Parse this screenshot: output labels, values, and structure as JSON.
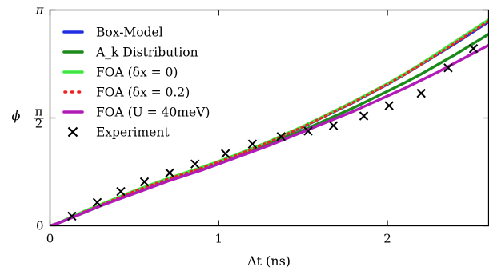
{
  "chart_data": {
    "type": "line",
    "xlabel": "Δt (ns)",
    "ylabel": "ϕ",
    "xlim": [
      0,
      2.6
    ],
    "ylim": [
      0,
      3.14159
    ],
    "x_ticks": [
      {
        "value": 0,
        "label": "0"
      },
      {
        "value": 1,
        "label": "1"
      },
      {
        "value": 2,
        "label": "2"
      }
    ],
    "y_ticks": [
      {
        "value": 0,
        "label": "0"
      },
      {
        "value": 1.5708,
        "label": "π/2"
      },
      {
        "value": 3.14159,
        "label": "π"
      }
    ],
    "grid": false,
    "legend_position": "top-left",
    "series": [
      {
        "name": "Box-Model",
        "color": "#1f2fe0",
        "style": "solid",
        "x": [
          0,
          0.05,
          0.1,
          0.2,
          0.3,
          0.4,
          0.5,
          0.6,
          0.7,
          0.8,
          0.9,
          1.0,
          1.1,
          1.2,
          1.3,
          1.4,
          1.5,
          1.6,
          1.7,
          1.8,
          1.9,
          2.0,
          2.1,
          2.2,
          2.3,
          2.4,
          2.5,
          2.6
        ],
        "y": [
          0,
          0.04,
          0.09,
          0.2,
          0.3,
          0.4,
          0.5,
          0.59,
          0.68,
          0.76,
          0.84,
          0.93,
          1.02,
          1.12,
          1.22,
          1.33,
          1.44,
          1.56,
          1.68,
          1.8,
          1.93,
          2.06,
          2.2,
          2.35,
          2.5,
          2.65,
          2.81,
          2.97
        ]
      },
      {
        "name": "A_k Distribution",
        "color": "#1a8a1a",
        "style": "solid",
        "x": [
          0,
          0.05,
          0.1,
          0.2,
          0.3,
          0.4,
          0.5,
          0.6,
          0.7,
          0.8,
          0.9,
          1.0,
          1.1,
          1.2,
          1.3,
          1.4,
          1.5,
          1.6,
          1.7,
          1.8,
          1.9,
          2.0,
          2.1,
          2.2,
          2.3,
          2.4,
          2.5,
          2.6
        ],
        "y": [
          0,
          0.04,
          0.09,
          0.19,
          0.29,
          0.39,
          0.48,
          0.57,
          0.66,
          0.74,
          0.82,
          0.91,
          1.0,
          1.09,
          1.19,
          1.29,
          1.39,
          1.5,
          1.61,
          1.72,
          1.84,
          1.96,
          2.08,
          2.21,
          2.35,
          2.49,
          2.64,
          2.79
        ]
      },
      {
        "name": "FOA (δx = 0)",
        "color": "#3ee83e",
        "style": "solid",
        "x": [
          0,
          0.05,
          0.1,
          0.2,
          0.3,
          0.4,
          0.5,
          0.6,
          0.7,
          0.8,
          0.9,
          1.0,
          1.1,
          1.2,
          1.3,
          1.4,
          1.5,
          1.6,
          1.7,
          1.8,
          1.9,
          2.0,
          2.1,
          2.2,
          2.3,
          2.4,
          2.5,
          2.6
        ],
        "y": [
          0,
          0.04,
          0.1,
          0.21,
          0.31,
          0.41,
          0.51,
          0.6,
          0.69,
          0.77,
          0.85,
          0.94,
          1.03,
          1.13,
          1.23,
          1.34,
          1.45,
          1.57,
          1.69,
          1.81,
          1.94,
          2.07,
          2.21,
          2.36,
          2.52,
          2.68,
          2.84,
          3.0
        ]
      },
      {
        "name": "FOA (δx = 0.2)",
        "color": "#ee2222",
        "style": "dotted",
        "x": [
          0,
          0.05,
          0.1,
          0.2,
          0.3,
          0.4,
          0.5,
          0.6,
          0.7,
          0.8,
          0.9,
          1.0,
          1.1,
          1.2,
          1.3,
          1.4,
          1.5,
          1.6,
          1.7,
          1.8,
          1.9,
          2.0,
          2.1,
          2.2,
          2.3,
          2.4,
          2.5,
          2.6
        ],
        "y": [
          0,
          0.04,
          0.09,
          0.2,
          0.3,
          0.4,
          0.5,
          0.59,
          0.68,
          0.76,
          0.84,
          0.93,
          1.02,
          1.12,
          1.22,
          1.33,
          1.44,
          1.56,
          1.68,
          1.8,
          1.93,
          2.06,
          2.2,
          2.35,
          2.5,
          2.66,
          2.82,
          2.98
        ]
      },
      {
        "name": "FOA (U = 40meV)",
        "color": "#b21ab8",
        "style": "solid",
        "x": [
          0,
          0.05,
          0.1,
          0.2,
          0.3,
          0.4,
          0.5,
          0.6,
          0.7,
          0.8,
          0.9,
          1.0,
          1.1,
          1.2,
          1.3,
          1.4,
          1.5,
          1.6,
          1.7,
          1.8,
          1.9,
          2.0,
          2.1,
          2.2,
          2.3,
          2.4,
          2.5,
          2.6
        ],
        "y": [
          0,
          0.04,
          0.09,
          0.19,
          0.29,
          0.38,
          0.47,
          0.56,
          0.65,
          0.73,
          0.81,
          0.9,
          0.99,
          1.08,
          1.17,
          1.27,
          1.37,
          1.47,
          1.57,
          1.67,
          1.78,
          1.89,
          2.0,
          2.12,
          2.24,
          2.37,
          2.5,
          2.63
        ]
      },
      {
        "name": "Experiment",
        "color": "#000000",
        "style": "marker-x",
        "x": [
          0.13,
          0.28,
          0.42,
          0.56,
          0.71,
          0.86,
          1.04,
          1.2,
          1.37,
          1.53,
          1.68,
          1.86,
          2.01,
          2.2,
          2.36,
          2.51
        ],
        "y": [
          0.14,
          0.34,
          0.5,
          0.64,
          0.77,
          0.9,
          1.05,
          1.19,
          1.3,
          1.38,
          1.46,
          1.6,
          1.75,
          1.93,
          2.3,
          2.58
        ]
      }
    ]
  }
}
